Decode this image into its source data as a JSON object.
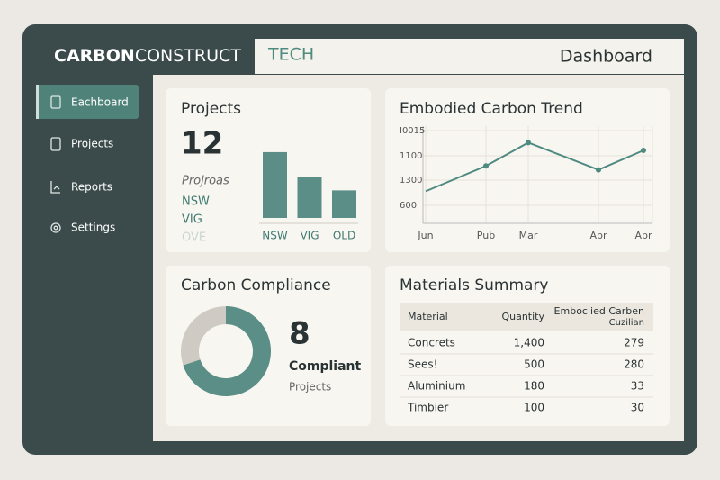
{
  "header": {
    "brand": [
      "CARBON",
      "CONSTRUCT"
    ],
    "brand_suffix": "TECH",
    "page_title": "Dashboard"
  },
  "sidebar": {
    "items": [
      "Eachboard",
      "Projects",
      "Reports",
      "Settings"
    ]
  },
  "projects_card": {
    "title": "Projects",
    "count": 12,
    "subtitle": "Projroas",
    "regions": [
      "NSW",
      "VIG",
      "OVE"
    ],
    "chart_data": {
      "type": "bar",
      "categories": [
        "NSW",
        "VIG",
        "OLD"
      ],
      "values": [
        74,
        46,
        31
      ],
      "color": "#5a8e86",
      "ylim": [
        0,
        80
      ]
    }
  },
  "trend_card": {
    "title": "Embodied Carbon Trend",
    "chart_data": {
      "type": "line",
      "categories": [
        "Jun",
        "Pub",
        "Mar",
        "Apr",
        "Apr"
      ],
      "y_labels": [
        "I0015",
        "1100",
        "1300",
        "600"
      ],
      "series": [
        {
          "color": "#4e8a80",
          "values": [
            33,
            59,
            83,
            55,
            75
          ]
        }
      ],
      "ylim": [
        0,
        100
      ]
    }
  },
  "compliance_card": {
    "title": "Carbon Compliance",
    "count": 8,
    "label": "Compliant",
    "sublabel": "Projects",
    "chart_data": {
      "type": "pie",
      "values": [
        70,
        30
      ],
      "colors": [
        "#5a8e86",
        "#cfcbc4"
      ]
    }
  },
  "materials_card": {
    "title": "Materials Summary",
    "table": {
      "columns": [
        "Material",
        "Quantity",
        [
          "Embociied Carben",
          "Cuzilian"
        ]
      ],
      "rows": [
        [
          "Concrets",
          "1,400",
          279
        ],
        [
          "Sees!",
          500,
          280
        ],
        [
          "Aluminium",
          180,
          33
        ],
        [
          "Timbier",
          100,
          30
        ]
      ]
    }
  }
}
